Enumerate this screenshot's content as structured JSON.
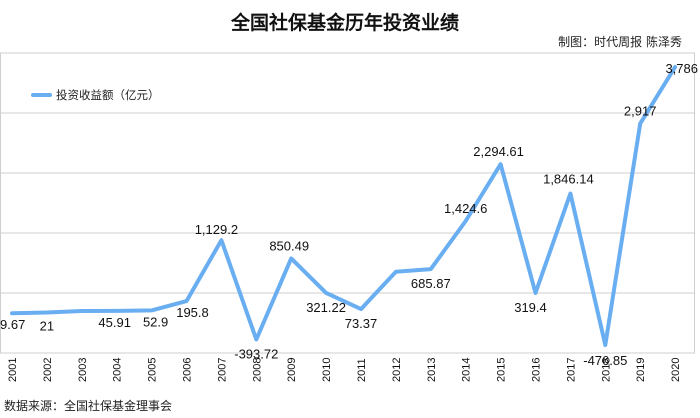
{
  "title": "全国社保基金历年投资业绩",
  "credit": "制图：时代周报 陈泽秀",
  "source": "数据来源：全国社保基金理事会",
  "colors": {
    "line": "#6aaef2",
    "grid": "#cfcfcf",
    "text": "#111111"
  },
  "chart_data": {
    "type": "line",
    "legend_position": "top-left",
    "grid": true,
    "ylim": [
      -600,
      4000
    ],
    "categories": [
      "2001",
      "2002",
      "2003",
      "2004",
      "2005",
      "2006",
      "2007",
      "2008",
      "2009",
      "2010",
      "2011",
      "2012",
      "2013",
      "2014",
      "2015",
      "2016",
      "2017",
      "2018",
      "2019",
      "2020"
    ],
    "series": [
      {
        "name": "投资收益额（亿元）",
        "values": [
          9.67,
          21,
          44.71,
          45.91,
          52.9,
          195.8,
          1129.2,
          -393.72,
          850.49,
          321.22,
          73.37,
          646.59,
          685.87,
          1424.6,
          2294.61,
          319.4,
          1846.14,
          -476.85,
          2917,
          3786
        ],
        "labels": [
          "9.67",
          "21",
          "",
          "45.91",
          "52.9",
          "195.8",
          "1,129.2",
          "-393.72",
          "850.49",
          "321.22",
          "73.37",
          "",
          "685.87",
          "1,424.6",
          "2,294.61",
          "319.4",
          "1,846.14",
          "-476.85",
          "2,917",
          "3,786"
        ]
      }
    ]
  }
}
